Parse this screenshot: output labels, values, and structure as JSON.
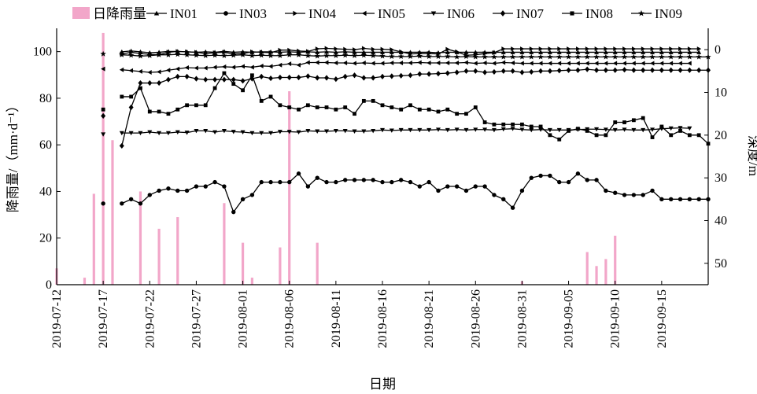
{
  "chart_data": {
    "type": "line",
    "xlabel": "日期",
    "ylabel_left": "降雨量/（mm·d⁻¹）",
    "ylabel_right": "深度/m",
    "ylim_left": [
      0,
      110
    ],
    "ylim_right": [
      55,
      -5
    ],
    "xlim": [
      "2019-07-12",
      "2019-09-20"
    ],
    "x_ticks": [
      "2019-07-12",
      "2019-07-17",
      "2019-07-22",
      "2019-07-27",
      "2019-08-01",
      "2019-08-06",
      "2019-08-11",
      "2019-08-16",
      "2019-08-21",
      "2019-08-26",
      "2019-08-31",
      "2019-09-05",
      "2019-09-10",
      "2019-09-15"
    ],
    "y_ticks_left": [
      0,
      20,
      40,
      60,
      80,
      100
    ],
    "y_ticks_right": [
      0,
      10,
      20,
      30,
      40,
      50
    ],
    "legend_position": "top",
    "rain": {
      "name": "日降雨量",
      "color": "#f2a6c9",
      "dates": [
        "2019-07-12",
        "2019-07-15",
        "2019-07-16",
        "2019-07-17",
        "2019-07-18",
        "2019-07-21",
        "2019-07-23",
        "2019-07-25",
        "2019-07-30",
        "2019-08-01",
        "2019-08-02",
        "2019-08-05",
        "2019-08-06",
        "2019-08-09",
        "2019-08-31",
        "2019-09-07",
        "2019-09-08",
        "2019-09-09",
        "2019-09-10"
      ],
      "values": [
        7,
        3,
        39,
        108,
        62,
        40,
        24,
        29,
        35,
        18,
        3,
        16,
        83,
        18,
        1.5,
        14,
        8,
        11,
        21
      ]
    },
    "series": [
      {
        "name": "IN01",
        "marker": "triangle-up",
        "start": "2019-07-19",
        "step_days": 1,
        "values": [
          0.5,
          0.3,
          0.5,
          0.7,
          0.6,
          0.4,
          0.4,
          0.5,
          0.6,
          0.5,
          0.6,
          0.4,
          0.6,
          0.5,
          0.6,
          0.5,
          0.5,
          0.6,
          0.5,
          0.6,
          0.5,
          0.6,
          0.5,
          0.6,
          0.5,
          0.6,
          0.6,
          0.6,
          0.6,
          0.6,
          0.6,
          0.6,
          0.6,
          0.6,
          0.7,
          0.6,
          0.6,
          0.6,
          0.6,
          0.6,
          0.6,
          0.6,
          0.6,
          0.6,
          0.6,
          0.6,
          0.6,
          0.6,
          0.6,
          0.6,
          0.6,
          0.6,
          0.6,
          0.6,
          0.6,
          0.6,
          0.6,
          0.6,
          0.6,
          0.6,
          0.6,
          0.6,
          0.6
        ]
      },
      {
        "name": "IN03",
        "marker": "circle",
        "start": "2019-07-17",
        "step_days": 1,
        "values": [
          36,
          null,
          36,
          35,
          36,
          34,
          33,
          32.5,
          33,
          33,
          32,
          32,
          31,
          32,
          38,
          35,
          34,
          31,
          31,
          31,
          31,
          29,
          32,
          30,
          31,
          31,
          30.5,
          30.5,
          30.5,
          30.5,
          31,
          31,
          30.5,
          31,
          32,
          31,
          33,
          32,
          32,
          33,
          32,
          32,
          34,
          35,
          37,
          33,
          30,
          29.5,
          29.5,
          31,
          31,
          29,
          30.5,
          30.5,
          33,
          33.5,
          34,
          34,
          34,
          33,
          35,
          35,
          35,
          35,
          35,
          35
        ]
      },
      {
        "name": "IN04",
        "marker": "triangle-right",
        "start": "2019-07-19",
        "step_days": 1,
        "values": [
          1.0,
          0.6,
          0.9,
          1.1,
          1.2,
          0.6,
          0.4,
          0.5,
          0.6,
          0.9,
          0.7,
          0.6,
          1.0,
          0.9,
          0.5,
          0.6,
          0.7,
          0.1,
          0.1,
          0.3,
          0.4,
          -0.2,
          -0.3,
          -0.2,
          -0.1,
          0,
          -0.3,
          -0.1,
          -0.1,
          0,
          0.5,
          1,
          0.9,
          0.9,
          1,
          -0.1,
          0.5,
          1.3,
          1.2,
          0.9,
          0.7,
          -0.2,
          -0.2,
          -0.2,
          -0.2,
          -0.2,
          -0.2,
          -0.2,
          -0.2,
          -0.2,
          -0.2,
          -0.2,
          -0.2,
          -0.2,
          -0.2,
          -0.2,
          -0.2,
          -0.2,
          -0.2,
          -0.2,
          -0.2,
          -0.2,
          -0.2
        ]
      },
      {
        "name": "IN05",
        "marker": "triangle-left",
        "start": "2019-07-17",
        "step_days": 1,
        "values": [
          4.5,
          null,
          4.7,
          4.9,
          5.1,
          5.3,
          5.2,
          4.8,
          4.5,
          4.2,
          4.3,
          4.3,
          4.1,
          4.0,
          4.1,
          3.9,
          4.1,
          3.8,
          3.9,
          3.6,
          3.3,
          3.6,
          3.0,
          3.0,
          3.0,
          3.1,
          3.1,
          3.2,
          3.1,
          3.2,
          3.2,
          3.1,
          3.1,
          3.1,
          3.0,
          3.1,
          3.1,
          3.1,
          3.1,
          3.0,
          3.2,
          3.1,
          3.2,
          3.0,
          3.1,
          3.2,
          3.2,
          3.2,
          3.2,
          3.2,
          3.2,
          3.2,
          3.2,
          3.2,
          3.2,
          3.2,
          3.2,
          3.2,
          3.2,
          3.2,
          3.2,
          3.2,
          3.2,
          3.2
        ]
      },
      {
        "name": "IN06",
        "marker": "triangle-down",
        "start": "2019-07-17",
        "step_days": 1,
        "values": [
          19.8,
          null,
          19.5,
          19.5,
          19.5,
          19.3,
          19.5,
          19.5,
          19.3,
          19.4,
          19.0,
          19.0,
          19.3,
          19.0,
          19.2,
          19.3,
          19.5,
          19.5,
          19.5,
          19.2,
          19.2,
          19.3,
          19.0,
          19.1,
          19.1,
          19.0,
          19.0,
          19.1,
          19.1,
          19.0,
          18.8,
          18.9,
          18.8,
          18.8,
          18.8,
          18.8,
          18.7,
          18.8,
          18.7,
          18.8,
          18.7,
          18.7,
          18.8,
          18.6,
          18.5,
          18.7,
          18.8,
          18.7,
          18.8,
          18.8,
          18.8,
          18.7,
          18.6,
          18.6,
          18.7,
          18.8,
          18.7,
          18.8,
          18.8,
          18.7,
          18.5,
          18.4,
          18.3,
          18.4
        ]
      },
      {
        "name": "IN07",
        "marker": "diamond",
        "start": "2019-07-17",
        "step_days": 1,
        "values": [
          15.5,
          null,
          22.5,
          13.5,
          7.8,
          7.8,
          7.8,
          7.0,
          6.3,
          6.3,
          6.8,
          7.0,
          7.0,
          7.0,
          7.0,
          7.3,
          6.8,
          6.3,
          6.7,
          6.5,
          6.5,
          6.5,
          6.2,
          6.6,
          6.6,
          6.9,
          6.3,
          6.0,
          6.6,
          6.6,
          6.3,
          6.2,
          6.1,
          6.0,
          5.7,
          5.7,
          5.6,
          5.5,
          5.3,
          5.0,
          5.0,
          5.3,
          5.2,
          5.0,
          5.0,
          5.3,
          5.2,
          5.0,
          5.0,
          4.9,
          4.8,
          4.8,
          4.6,
          4.8,
          4.8,
          4.8,
          4.7,
          4.8,
          4.8,
          4.8,
          4.8,
          4.8,
          4.8,
          4.8,
          4.8,
          4.8
        ]
      },
      {
        "name": "IN08",
        "marker": "square",
        "start": "2019-07-17",
        "step_days": 1,
        "values": [
          14,
          null,
          11,
          11,
          9,
          14.5,
          14.5,
          15,
          14,
          13,
          13,
          13,
          9,
          5.5,
          8,
          9.5,
          6,
          12,
          11,
          13,
          13.5,
          14,
          13,
          13.5,
          13.5,
          14,
          13.5,
          15,
          12,
          12,
          13,
          13.5,
          14,
          13,
          14,
          14,
          14.5,
          14,
          15,
          15,
          13.5,
          17,
          17.5,
          17.5,
          17.5,
          17.5,
          18,
          18,
          20,
          21,
          19,
          18.5,
          19,
          20,
          20,
          17,
          17,
          16.5,
          16,
          20.5,
          18,
          20,
          19,
          20,
          20,
          22
        ]
      },
      {
        "name": "IN09",
        "marker": "star",
        "start": "2019-07-17",
        "step_days": 1,
        "values": [
          1.0,
          null,
          1.2,
          1.3,
          1.5,
          1.4,
          1.2,
          1.2,
          1.1,
          1.2,
          1.3,
          1.4,
          1.3,
          1.4,
          1.3,
          1.2,
          1.4,
          1.3,
          1.4,
          1.4,
          1.2,
          1.2,
          1.4,
          1.5,
          1.4,
          1.4,
          1.3,
          1.4,
          1.3,
          1.4,
          1.5,
          1.6,
          1.6,
          1.6,
          1.5,
          1.6,
          1.6,
          1.6,
          1.7,
          1.6,
          1.7,
          1.7,
          1.7,
          1.7,
          1.7,
          1.7,
          1.7,
          1.7,
          1.7,
          1.7,
          1.7,
          1.7,
          1.7,
          1.7,
          1.7,
          1.7,
          1.7,
          1.7,
          1.7,
          1.7,
          1.7,
          1.7,
          1.7,
          1.7,
          1.7,
          1.7
        ]
      }
    ]
  }
}
